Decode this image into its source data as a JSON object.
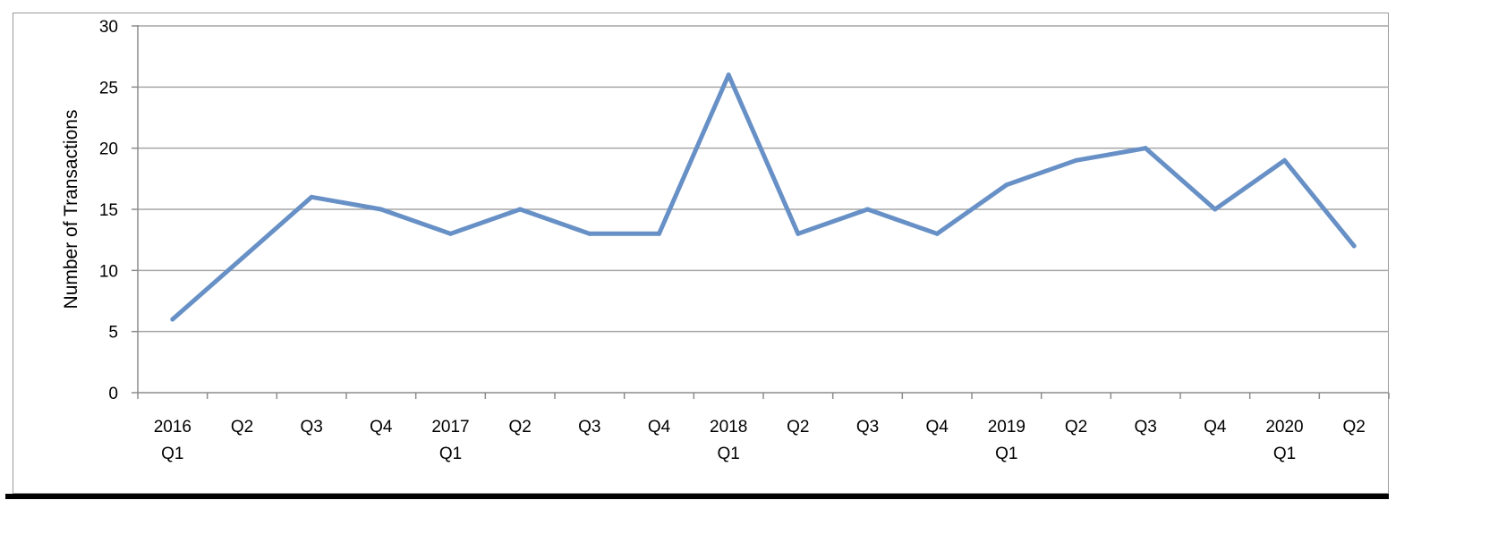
{
  "chart_data": {
    "type": "line",
    "title": "",
    "xlabel": "",
    "ylabel": "Number of Transactions",
    "ylim": [
      0,
      30
    ],
    "yticks": [
      0,
      5,
      10,
      15,
      20,
      25,
      30
    ],
    "grid": "horizontal",
    "legend": "none",
    "categories": [
      [
        "2016",
        "Q1"
      ],
      [
        "Q2"
      ],
      [
        "Q3"
      ],
      [
        "Q4"
      ],
      [
        "2017",
        "Q1"
      ],
      [
        "Q2"
      ],
      [
        "Q3"
      ],
      [
        "Q4"
      ],
      [
        "2018",
        "Q1"
      ],
      [
        "Q2"
      ],
      [
        "Q3"
      ],
      [
        "Q4"
      ],
      [
        "2019",
        "Q1"
      ],
      [
        "Q2"
      ],
      [
        "Q3"
      ],
      [
        "Q4"
      ],
      [
        "2020",
        "Q1"
      ],
      [
        "Q2"
      ]
    ],
    "series": [
      {
        "values": [
          6,
          11,
          16,
          15,
          13,
          15,
          13,
          13,
          26,
          13,
          15,
          13,
          17,
          19,
          20,
          15,
          19,
          12
        ],
        "color": "#6790c6"
      }
    ]
  }
}
